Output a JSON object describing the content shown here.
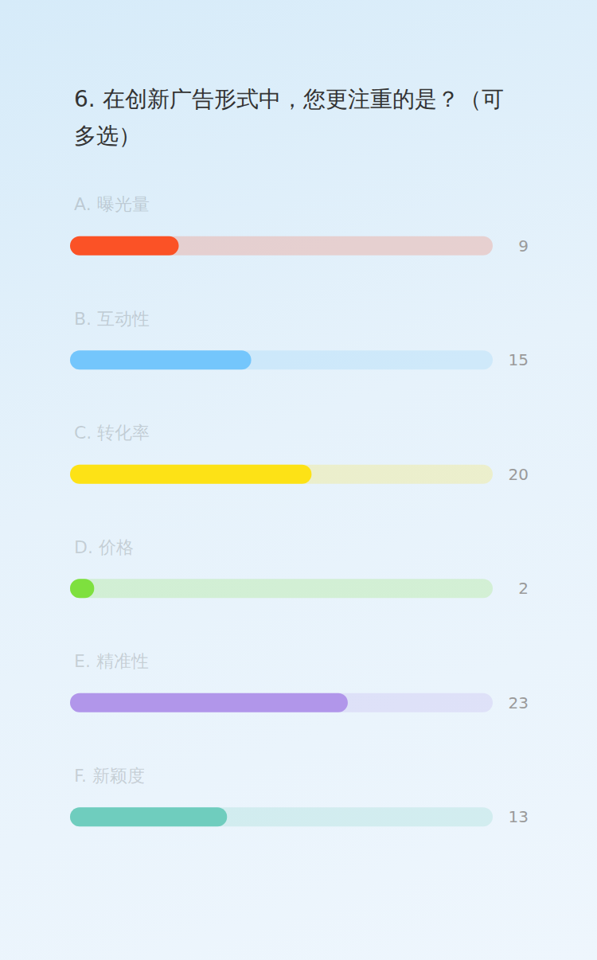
{
  "chart_data": {
    "type": "bar",
    "orientation": "horizontal",
    "title": "6. 在创新广告形式中，您更注重的是？（可多选）",
    "categories": [
      "A. 曝光量",
      "B. 互动性",
      "C. 转化率",
      "D. 价格",
      "E. 精准性",
      "F. 新颖度"
    ],
    "values": [
      9,
      15,
      20,
      2,
      23,
      13
    ],
    "colors": [
      "#fb5226",
      "#74c6fc",
      "#fde216",
      "#7ee03e",
      "#b196ea",
      "#6fcdbe"
    ],
    "xlim": [
      0,
      35
    ],
    "grid": false,
    "data_labels": true,
    "tick_labels": false
  }
}
